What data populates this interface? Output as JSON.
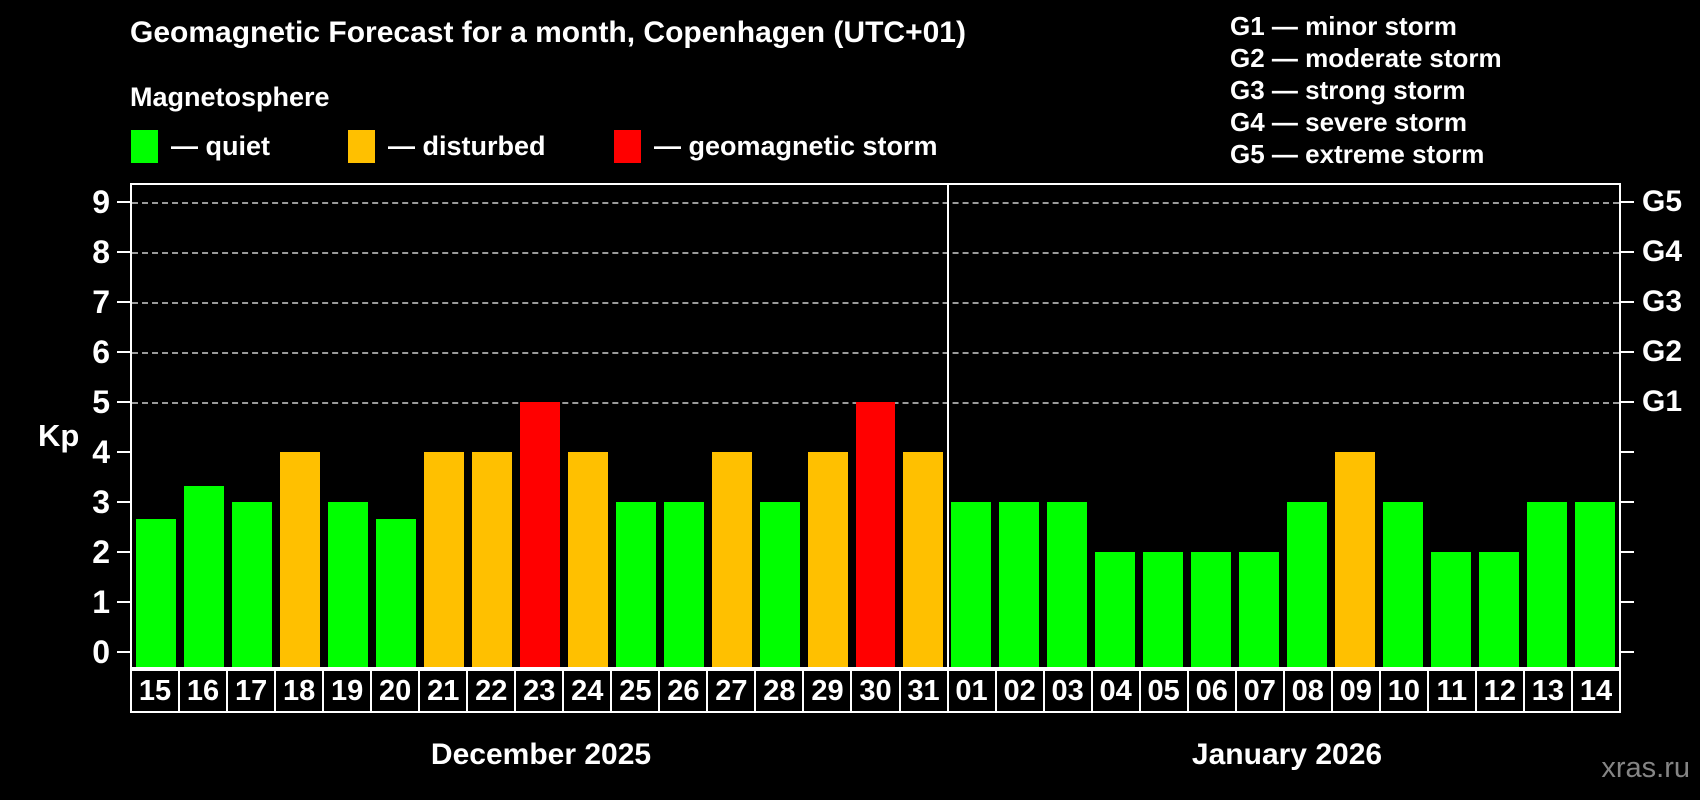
{
  "title": "Geomagnetic Forecast for a month, Copenhagen (UTC+01)",
  "subtitle": "Magnetosphere",
  "legend": {
    "items": [
      {
        "key": "quiet",
        "label": "— quiet",
        "color": "#00ff00"
      },
      {
        "key": "disturbed",
        "label": "— disturbed",
        "color": "#ffc000"
      },
      {
        "key": "storm",
        "label": "— geomagnetic storm",
        "color": "#ff0000"
      }
    ]
  },
  "storm_scale_legend": [
    "G1 — minor storm",
    "G2 — moderate storm",
    "G3 — strong storm",
    "G4 — severe storm",
    "G5 — extreme storm"
  ],
  "y_axis": {
    "label": "Kp",
    "ticks": [
      0,
      1,
      2,
      3,
      4,
      5,
      6,
      7,
      8,
      9
    ]
  },
  "right_axis": {
    "labels": [
      {
        "text": "G1",
        "kp": 5
      },
      {
        "text": "G2",
        "kp": 6
      },
      {
        "text": "G3",
        "kp": 7
      },
      {
        "text": "G4",
        "kp": 8
      },
      {
        "text": "G5",
        "kp": 9
      }
    ]
  },
  "watermark": "xras.ru",
  "chart_data": {
    "type": "bar",
    "title": "Geomagnetic Forecast for a month, Copenhagen (UTC+01)",
    "xlabel": "",
    "ylabel": "Kp",
    "ylim": [
      0,
      9
    ],
    "gridlines_at_kp": [
      5,
      6,
      7,
      8,
      9
    ],
    "legend_position": "top-left",
    "groups": [
      {
        "label": "December 2025",
        "days": [
          {
            "day": "15",
            "kp": 2.67,
            "status": "quiet"
          },
          {
            "day": "16",
            "kp": 3.33,
            "status": "quiet"
          },
          {
            "day": "17",
            "kp": 3,
            "status": "quiet"
          },
          {
            "day": "18",
            "kp": 4,
            "status": "disturbed"
          },
          {
            "day": "19",
            "kp": 3,
            "status": "quiet"
          },
          {
            "day": "20",
            "kp": 2.67,
            "status": "quiet"
          },
          {
            "day": "21",
            "kp": 4,
            "status": "disturbed"
          },
          {
            "day": "22",
            "kp": 4,
            "status": "disturbed"
          },
          {
            "day": "23",
            "kp": 5,
            "status": "storm"
          },
          {
            "day": "24",
            "kp": 4,
            "status": "disturbed"
          },
          {
            "day": "25",
            "kp": 3,
            "status": "quiet"
          },
          {
            "day": "26",
            "kp": 3,
            "status": "quiet"
          },
          {
            "day": "27",
            "kp": 4,
            "status": "disturbed"
          },
          {
            "day": "28",
            "kp": 3,
            "status": "quiet"
          },
          {
            "day": "29",
            "kp": 4,
            "status": "disturbed"
          },
          {
            "day": "30",
            "kp": 5,
            "status": "storm"
          },
          {
            "day": "31",
            "kp": 4,
            "status": "disturbed"
          }
        ]
      },
      {
        "label": "January 2026",
        "days": [
          {
            "day": "01",
            "kp": 3,
            "status": "quiet"
          },
          {
            "day": "02",
            "kp": 3,
            "status": "quiet"
          },
          {
            "day": "03",
            "kp": 3,
            "status": "quiet"
          },
          {
            "day": "04",
            "kp": 2,
            "status": "quiet"
          },
          {
            "day": "05",
            "kp": 2,
            "status": "quiet"
          },
          {
            "day": "06",
            "kp": 2,
            "status": "quiet"
          },
          {
            "day": "07",
            "kp": 2,
            "status": "quiet"
          },
          {
            "day": "08",
            "kp": 3,
            "status": "quiet"
          },
          {
            "day": "09",
            "kp": 4,
            "status": "disturbed"
          },
          {
            "day": "10",
            "kp": 3,
            "status": "quiet"
          },
          {
            "day": "11",
            "kp": 2,
            "status": "quiet"
          },
          {
            "day": "12",
            "kp": 2,
            "status": "quiet"
          },
          {
            "day": "13",
            "kp": 3,
            "status": "quiet"
          },
          {
            "day": "14",
            "kp": 3,
            "status": "quiet"
          }
        ]
      }
    ]
  }
}
